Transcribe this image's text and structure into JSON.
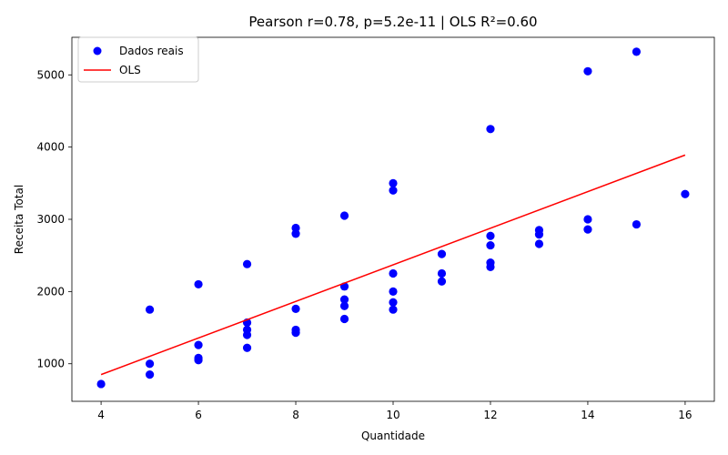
{
  "chart_data": {
    "type": "scatter",
    "title": "Pearson r=0.78, p=5.2e-11 | OLS R²=0.60",
    "xlabel": "Quantidade",
    "ylabel": "Receita Total",
    "xlim": [
      3.4,
      16.6
    ],
    "ylim": [
      480,
      5520
    ],
    "xticks": [
      4,
      6,
      8,
      10,
      12,
      14,
      16
    ],
    "yticks": [
      1000,
      2000,
      3000,
      4000,
      5000
    ],
    "grid": false,
    "legend_position": "top-left",
    "series": [
      {
        "name": "Dados reais",
        "kind": "scatter",
        "color": "#0000ff",
        "points": [
          [
            4,
            720
          ],
          [
            5,
            1750
          ],
          [
            5,
            1000
          ],
          [
            5,
            850
          ],
          [
            6,
            2100
          ],
          [
            6,
            1260
          ],
          [
            6,
            1080
          ],
          [
            6,
            1050
          ],
          [
            7,
            2380
          ],
          [
            7,
            1570
          ],
          [
            7,
            1470
          ],
          [
            7,
            1400
          ],
          [
            7,
            1220
          ],
          [
            8,
            2880
          ],
          [
            8,
            2800
          ],
          [
            8,
            1760
          ],
          [
            8,
            1470
          ],
          [
            8,
            1430
          ],
          [
            9,
            3050
          ],
          [
            9,
            2070
          ],
          [
            9,
            1890
          ],
          [
            9,
            1800
          ],
          [
            9,
            1620
          ],
          [
            10,
            3500
          ],
          [
            10,
            3400
          ],
          [
            10,
            2250
          ],
          [
            10,
            2000
          ],
          [
            10,
            1850
          ],
          [
            10,
            1750
          ],
          [
            11,
            2520
          ],
          [
            11,
            2250
          ],
          [
            11,
            2140
          ],
          [
            12,
            4250
          ],
          [
            12,
            2770
          ],
          [
            12,
            2640
          ],
          [
            12,
            2400
          ],
          [
            12,
            2340
          ],
          [
            13,
            2850
          ],
          [
            13,
            2790
          ],
          [
            13,
            2660
          ],
          [
            14,
            5050
          ],
          [
            14,
            3000
          ],
          [
            14,
            2860
          ],
          [
            15,
            5320
          ],
          [
            15,
            2930
          ],
          [
            16,
            3350
          ]
        ]
      },
      {
        "name": "OLS",
        "kind": "line",
        "color": "#ff0000",
        "x": [
          4,
          16
        ],
        "y": [
          850,
          3890
        ]
      }
    ]
  }
}
